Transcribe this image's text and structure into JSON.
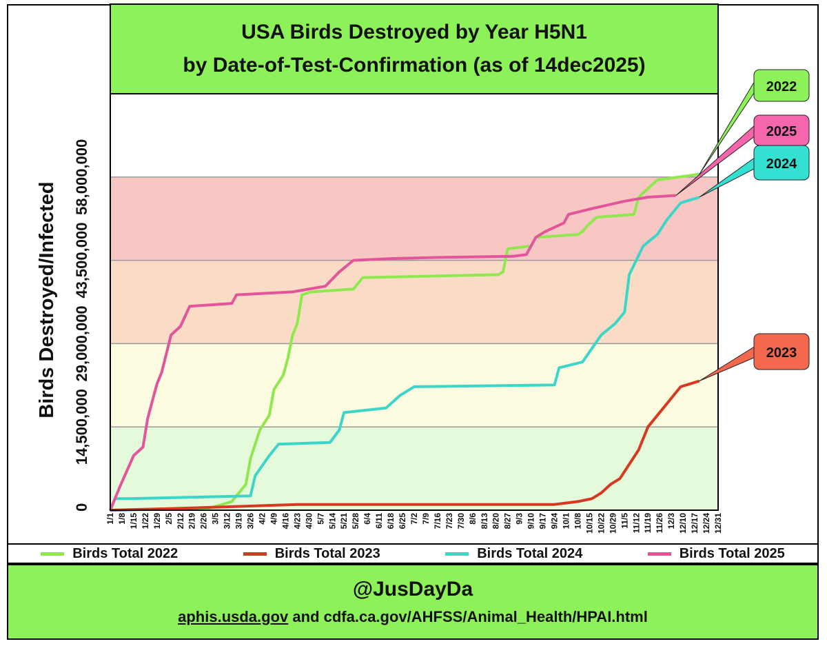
{
  "page": {
    "handle": "@JusDayDa",
    "source_link": "aphis.usda.gov",
    "source_rest": " and cdfa.ca.gov/AHFSS/Animal_Health/HPAI.html"
  },
  "chart_data": {
    "type": "line",
    "title": "USA Birds Destroyed by Year H5N1",
    "subtitle": "by Date-of-Test-Confirmation (as of 14dec2025)",
    "ylabel": "Birds Destroyed/Infected",
    "xlabel": "",
    "ylim": [
      0,
      72500000
    ],
    "y_ticks": [
      {
        "value": 0,
        "label": "0"
      },
      {
        "value": 14500000,
        "label": "14,500,000"
      },
      {
        "value": 29000000,
        "label": "29,000,000"
      },
      {
        "value": 43500000,
        "label": "43,500,000"
      },
      {
        "value": 58000000,
        "label": "58,000,000"
      }
    ],
    "x_ticks": [
      "1/1",
      "1/8",
      "1/15",
      "1/22",
      "1/29",
      "2/5",
      "2/12",
      "2/19",
      "2/26",
      "3/5",
      "3/12",
      "3/19",
      "3/26",
      "4/2",
      "4/9",
      "4/16",
      "4/23",
      "4/30",
      "5/7",
      "5/14",
      "5/21",
      "5/28",
      "6/4",
      "6/11",
      "6/18",
      "6/25",
      "7/2",
      "7/9",
      "7/16",
      "7/23",
      "7/30",
      "8/6",
      "8/13",
      "8/20",
      "8/27",
      "9/3",
      "9/10",
      "9/17",
      "9/24",
      "10/1",
      "10/8",
      "10/15",
      "10/22",
      "10/29",
      "11/5",
      "11/12",
      "11/19",
      "11/26",
      "12/3",
      "12/10",
      "12/17",
      "12/24",
      "12/31"
    ],
    "bands": [
      {
        "from": 0,
        "to": 14500000,
        "color": "#e4fadb"
      },
      {
        "from": 14500000,
        "to": 29000000,
        "color": "#fdfbe0"
      },
      {
        "from": 29000000,
        "to": 43500000,
        "color": "#fadcc6"
      },
      {
        "from": 43500000,
        "to": 58000000,
        "color": "#f8c6c3"
      }
    ],
    "grid": true,
    "legend_position": "bottom",
    "series": [
      {
        "name": "Birds Total 2022",
        "color": "#8fe84d",
        "label": "2022",
        "label_color": "#8df25a",
        "points": [
          [
            0,
            0
          ],
          [
            21,
            300000
          ],
          [
            26,
            1500000
          ],
          [
            27,
            2500000
          ],
          [
            29,
            4500000
          ],
          [
            30,
            9000000
          ],
          [
            32,
            14000000
          ],
          [
            34,
            16500000
          ],
          [
            35,
            21000000
          ],
          [
            37,
            23500000
          ],
          [
            38,
            26500000
          ],
          [
            39,
            30500000
          ],
          [
            40,
            32500000
          ],
          [
            41,
            37500000
          ],
          [
            43,
            38000000
          ],
          [
            52,
            38500000
          ],
          [
            54,
            40500000
          ],
          [
            83,
            41000000
          ],
          [
            84,
            41500000
          ],
          [
            85,
            45500000
          ],
          [
            90,
            46000000
          ],
          [
            91,
            47500000
          ],
          [
            100,
            48000000
          ],
          [
            101,
            48500000
          ],
          [
            102,
            49500000
          ],
          [
            104,
            51000000
          ],
          [
            112,
            51500000
          ],
          [
            113,
            54500000
          ],
          [
            117,
            57500000
          ],
          [
            126,
            58500000
          ]
        ]
      },
      {
        "name": "Birds Total 2023",
        "color": "#d83820",
        "label": "2023",
        "label_color": "#f4684e",
        "points": [
          [
            0,
            0
          ],
          [
            14,
            300000
          ],
          [
            40,
            1000000
          ],
          [
            95,
            1000000
          ],
          [
            97,
            1200000
          ],
          [
            100,
            1500000
          ],
          [
            103,
            2000000
          ],
          [
            105,
            3000000
          ],
          [
            107,
            4500000
          ],
          [
            109,
            5500000
          ],
          [
            111,
            8000000
          ],
          [
            113,
            10500000
          ],
          [
            115,
            14500000
          ],
          [
            118,
            17500000
          ],
          [
            120,
            19500000
          ],
          [
            122,
            21500000
          ],
          [
            126,
            22500000
          ]
        ]
      },
      {
        "name": "Birds Total 2024",
        "color": "#3cd6c8",
        "label": "2024",
        "label_color": "#34e0d2",
        "points": [
          [
            0,
            0
          ],
          [
            1,
            2000000
          ],
          [
            4,
            2000000
          ],
          [
            30,
            2500000
          ],
          [
            31,
            6000000
          ],
          [
            34,
            9500000
          ],
          [
            36,
            11500000
          ],
          [
            47,
            11800000
          ],
          [
            49,
            14000000
          ],
          [
            50,
            17000000
          ],
          [
            59,
            17800000
          ],
          [
            62,
            20000000
          ],
          [
            65,
            21500000
          ],
          [
            95,
            21800000
          ],
          [
            96,
            24800000
          ],
          [
            101,
            25800000
          ],
          [
            105,
            30500000
          ],
          [
            108,
            32500000
          ],
          [
            110,
            34500000
          ],
          [
            111,
            41000000
          ],
          [
            114,
            46000000
          ],
          [
            117,
            48000000
          ],
          [
            119,
            50500000
          ],
          [
            122,
            53500000
          ],
          [
            126,
            54500000
          ]
        ]
      },
      {
        "name": "Birds Total 2025",
        "color": "#e2559a",
        "label": "2025",
        "label_color": "#f566ac",
        "points": [
          [
            0,
            0
          ],
          [
            2,
            4000000
          ],
          [
            5,
            9500000
          ],
          [
            7,
            11000000
          ],
          [
            8,
            16000000
          ],
          [
            10,
            22000000
          ],
          [
            11,
            24000000
          ],
          [
            13,
            30500000
          ],
          [
            15,
            32000000
          ],
          [
            17,
            35500000
          ],
          [
            26,
            36000000
          ],
          [
            27,
            37500000
          ],
          [
            39,
            38000000
          ],
          [
            46,
            39000000
          ],
          [
            49,
            41500000
          ],
          [
            52,
            43500000
          ],
          [
            60,
            43800000
          ],
          [
            70,
            44000000
          ],
          [
            86,
            44200000
          ],
          [
            89,
            44500000
          ],
          [
            91,
            47500000
          ],
          [
            93,
            48500000
          ],
          [
            97,
            50000000
          ],
          [
            98,
            51500000
          ],
          [
            103,
            52500000
          ],
          [
            110,
            53800000
          ],
          [
            115,
            54500000
          ],
          [
            121,
            54800000
          ]
        ]
      }
    ]
  }
}
